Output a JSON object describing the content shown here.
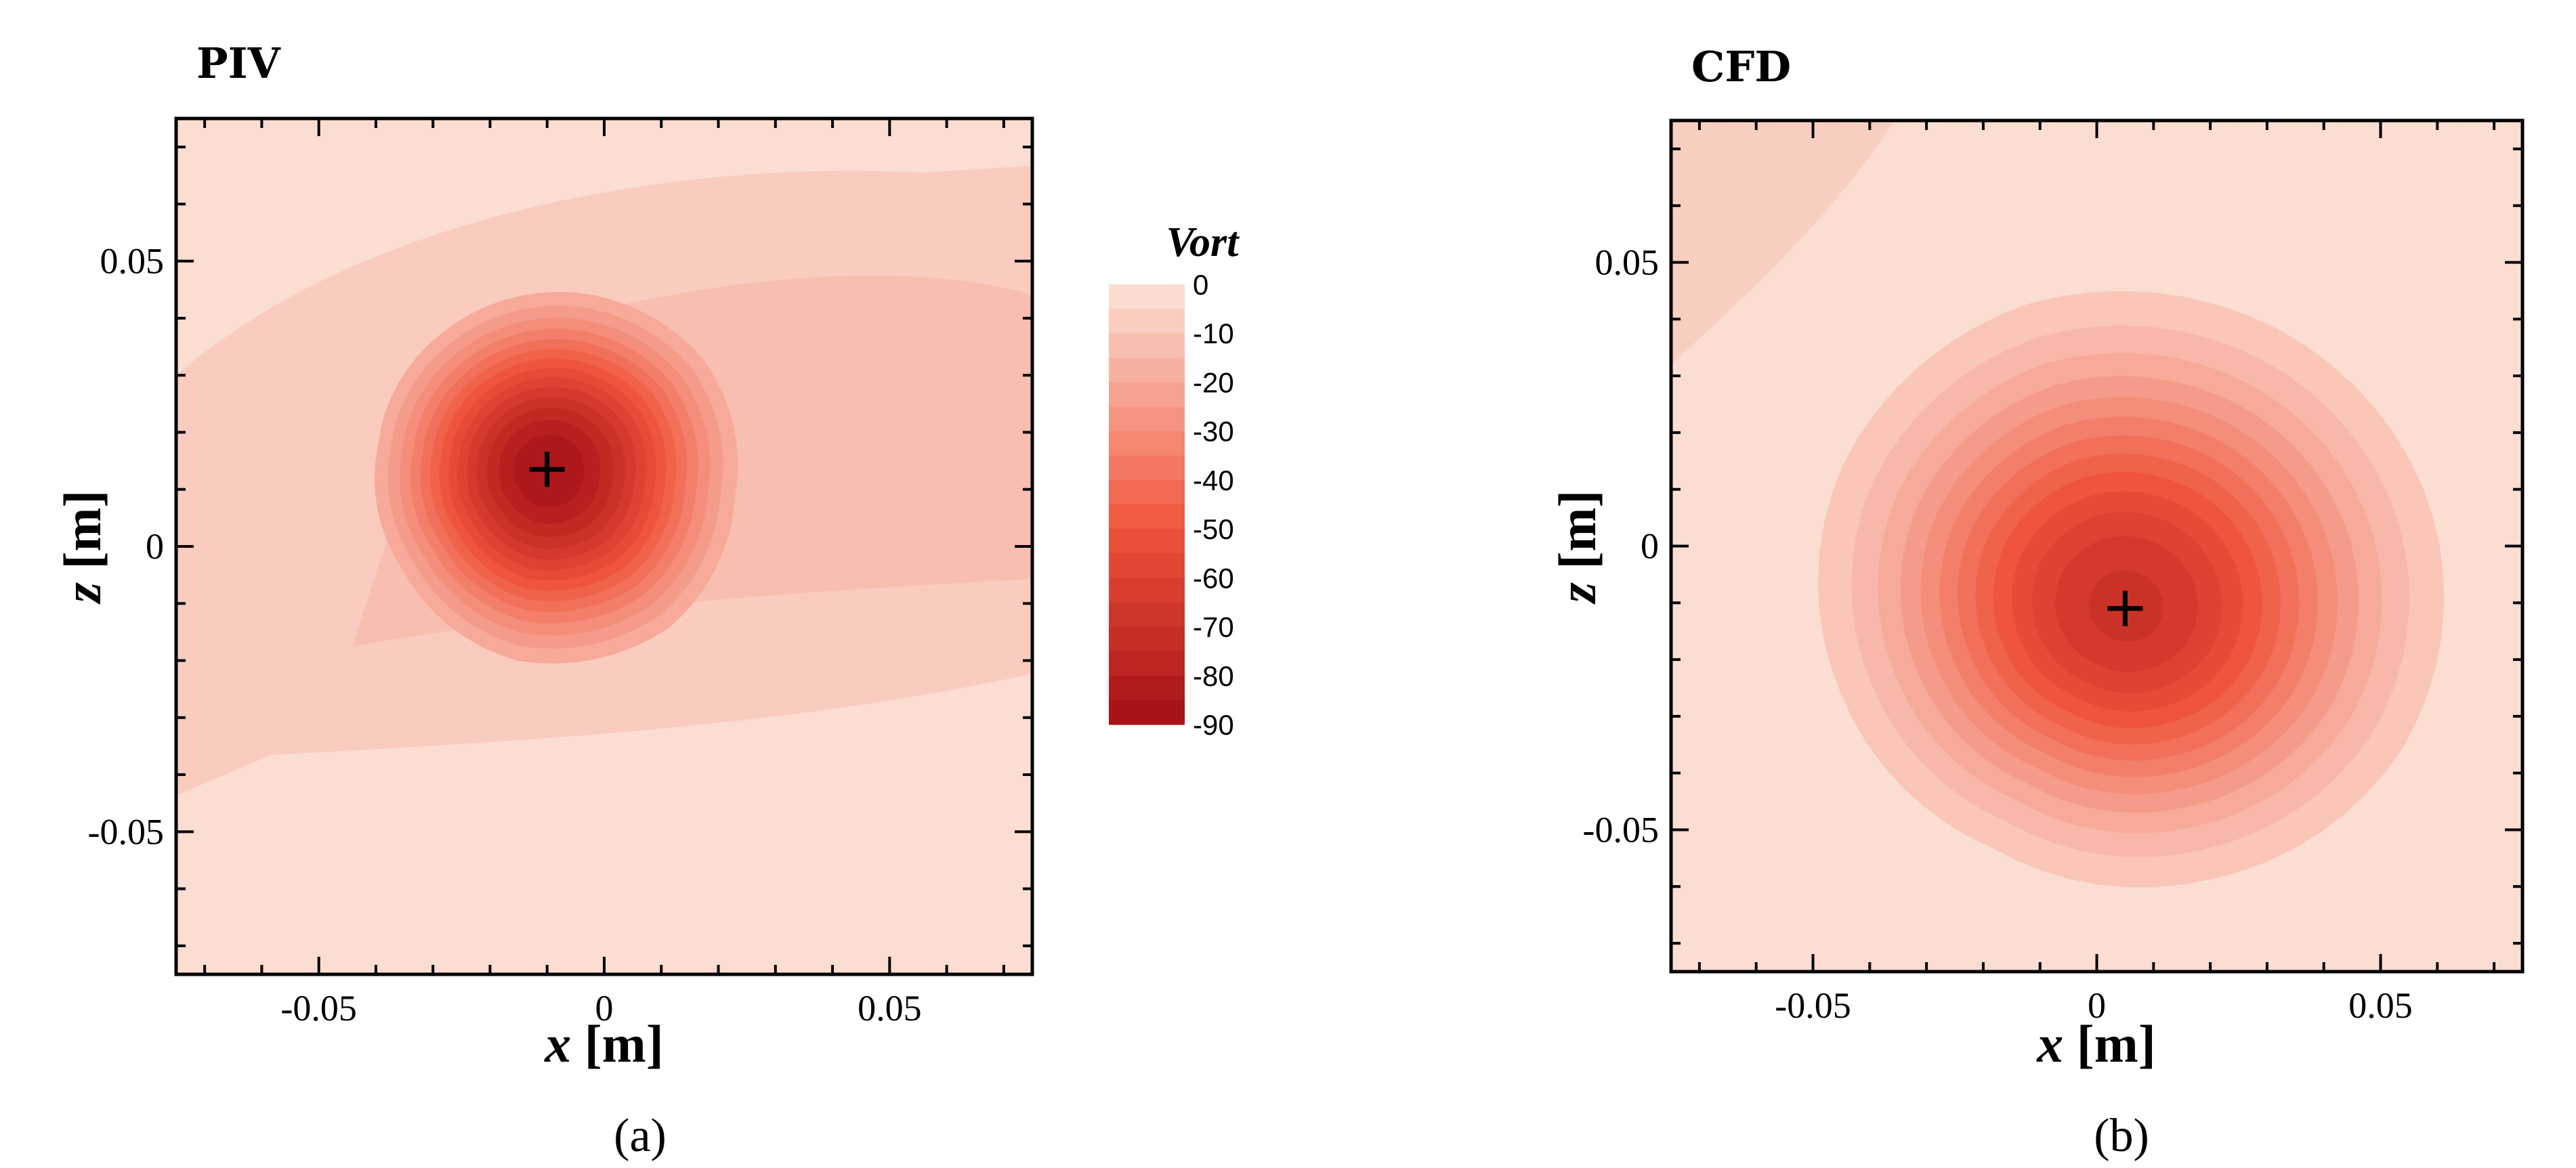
{
  "chart_data": [
    {
      "type": "contour",
      "panel": "(a)",
      "title": "PIV",
      "xlabel": {
        "var": "x",
        "unit": " [m]"
      },
      "ylabel": {
        "var": "z",
        "unit": " [m]"
      },
      "xlim": [
        -0.075,
        0.075
      ],
      "ylim": [
        -0.075,
        0.075
      ],
      "xticks": [
        -0.05,
        0,
        0.05
      ],
      "xtick_labels": [
        "-0.05",
        "0",
        "0.05"
      ],
      "yticks": [
        -0.05,
        0,
        0.05
      ],
      "ytick_labels": [
        "-0.05",
        "0",
        "0.05"
      ],
      "vortex_center": {
        "x": -0.01,
        "z": 0.0135
      },
      "peak_vorticity": -90,
      "core_radius": 0.032,
      "background_value": -15
    },
    {
      "type": "contour",
      "panel": "(b)",
      "title": "CFD",
      "xlabel": {
        "var": "x",
        "unit": " [m]"
      },
      "ylabel": {
        "var": "z",
        "unit": " [m]"
      },
      "xlim": [
        -0.075,
        0.075
      ],
      "ylim": [
        -0.075,
        0.075
      ],
      "xticks": [
        -0.05,
        0,
        0.05
      ],
      "xtick_labels": [
        "-0.05",
        "0",
        "0.05"
      ],
      "yticks": [
        -0.05,
        0,
        0.05
      ],
      "ytick_labels": [
        "-0.05",
        "0",
        "0.05"
      ],
      "vortex_center": {
        "x": 0.005,
        "z": -0.011
      },
      "peak_vorticity": -72,
      "core_radius": 0.052,
      "background_value": -5
    }
  ],
  "legend": {
    "title": "Vort",
    "levels": [
      0,
      -5,
      -10,
      -15,
      -20,
      -25,
      -30,
      -35,
      -40,
      -45,
      -50,
      -55,
      -60,
      -65,
      -70,
      -75,
      -80,
      -85,
      -90
    ],
    "labels": [
      "0",
      "-10",
      "-20",
      "-30",
      "-40",
      "-50",
      "-60",
      "-70",
      "-80",
      "-90"
    ],
    "color_min": "#fbe3d8",
    "color_mid": "#f0553c",
    "color_max": "#a50f15"
  },
  "captions": [
    "(a)",
    "(b)"
  ]
}
